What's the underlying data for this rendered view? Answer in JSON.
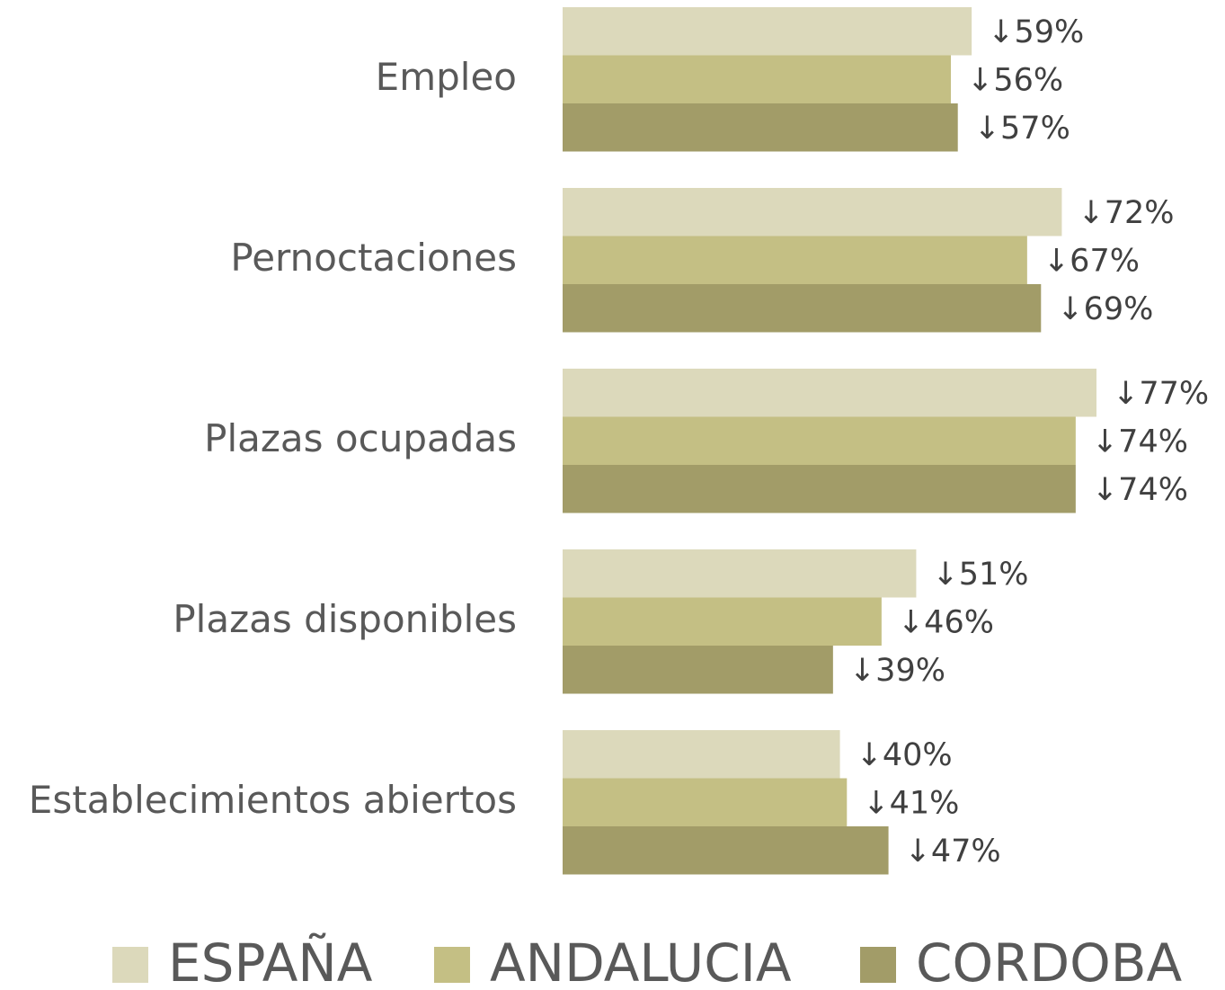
{
  "chart_data": {
    "type": "bar",
    "orientation": "horizontal",
    "categories": [
      "Empleo",
      "Pernoctaciones",
      "Plazas ocupadas",
      "Plazas disponibles",
      "Establecimientos abiertos"
    ],
    "series": [
      {
        "name": "ESPAÑA",
        "color": "#dcd9bb",
        "values": [
          59,
          72,
          77,
          51,
          40
        ],
        "value_labels": [
          "↓59%",
          "↓72%",
          "↓77%",
          "↓51%",
          "↓40%"
        ]
      },
      {
        "name": "ANDALUCIA",
        "color": "#c4bf84",
        "values": [
          56,
          67,
          74,
          46,
          41
        ],
        "value_labels": [
          "↓56%",
          "↓67%",
          "↓74%",
          "↓46%",
          "↓41%"
        ]
      },
      {
        "name": "CORDOBA",
        "color": "#a29c68",
        "values": [
          57,
          69,
          74,
          39,
          47
        ],
        "value_labels": [
          "↓57%",
          "↓69%",
          "↓74%",
          "↓39%",
          "↓47%"
        ]
      }
    ]
  }
}
